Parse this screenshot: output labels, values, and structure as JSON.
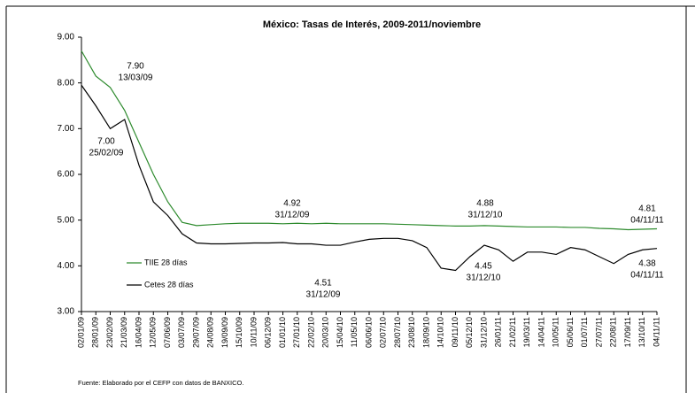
{
  "chart_data": {
    "type": "line",
    "title": "México: Tasas de Interés, 2009-2011/noviembre",
    "source": "Fuente: Elaborado por el CEFP con datos de BANXICO.",
    "categories": [
      "02/01/09",
      "28/01/09",
      "23/02/09",
      "21/03/09",
      "16/04/09",
      "12/05/09",
      "07/06/09",
      "03/07/09",
      "29/07/09",
      "24/08/09",
      "19/09/09",
      "15/10/09",
      "10/11/09",
      "06/12/09",
      "01/01/10",
      "27/01/10",
      "22/02/10",
      "20/03/10",
      "15/04/10",
      "11/05/10",
      "06/06/10",
      "02/07/10",
      "28/07/10",
      "23/08/10",
      "18/09/10",
      "14/10/10",
      "09/11/10",
      "05/12/10",
      "31/12/10",
      "26/01/11",
      "21/02/11",
      "19/03/11",
      "14/04/11",
      "10/05/11",
      "05/06/11",
      "01/07/11",
      "27/07/11",
      "22/08/11",
      "17/09/11",
      "13/10/11",
      "04/11/11"
    ],
    "series": [
      {
        "name": "TIIE 28 días",
        "color": "#2e8b2e",
        "values": [
          8.7,
          8.15,
          7.9,
          7.4,
          6.7,
          6.0,
          5.4,
          4.95,
          4.88,
          4.9,
          4.92,
          4.93,
          4.93,
          4.93,
          4.92,
          4.93,
          4.92,
          4.93,
          4.92,
          4.92,
          4.92,
          4.92,
          4.91,
          4.9,
          4.89,
          4.88,
          4.87,
          4.87,
          4.88,
          4.87,
          4.86,
          4.85,
          4.85,
          4.85,
          4.84,
          4.84,
          4.82,
          4.81,
          4.79,
          4.8,
          4.81
        ]
      },
      {
        "name": "Cetes 28 días",
        "color": "#000000",
        "values": [
          7.95,
          7.5,
          7.0,
          7.2,
          6.2,
          5.4,
          5.1,
          4.7,
          4.5,
          4.48,
          4.48,
          4.49,
          4.5,
          4.5,
          4.51,
          4.48,
          4.48,
          4.45,
          4.45,
          4.52,
          4.58,
          4.6,
          4.6,
          4.55,
          4.4,
          3.95,
          3.9,
          4.2,
          4.45,
          4.35,
          4.1,
          4.3,
          4.3,
          4.25,
          4.4,
          4.35,
          4.2,
          4.05,
          4.25,
          4.35,
          4.38
        ]
      }
    ],
    "annotations": [
      [
        "7.90",
        "13/03/09"
      ],
      [
        "7.00",
        "25/02/09"
      ],
      [
        "4.92",
        "31/12/09"
      ],
      [
        "4.51",
        "31/12/09"
      ],
      [
        "4.88",
        "31/12/10"
      ],
      [
        "4.45",
        "31/12/10"
      ],
      [
        "4.81",
        "04/11/11"
      ],
      [
        "4.38",
        "04/11/11"
      ]
    ],
    "ylim": [
      3,
      9
    ],
    "yticks": [
      {
        "value": 3,
        "label": "3.00"
      },
      {
        "value": 4,
        "label": "4.00"
      },
      {
        "value": 5,
        "label": "5.00"
      },
      {
        "value": 6,
        "label": "6.00"
      },
      {
        "value": 7,
        "label": "7.00"
      },
      {
        "value": 8,
        "label": "8.00"
      },
      {
        "value": 9,
        "label": "9.00"
      }
    ]
  }
}
